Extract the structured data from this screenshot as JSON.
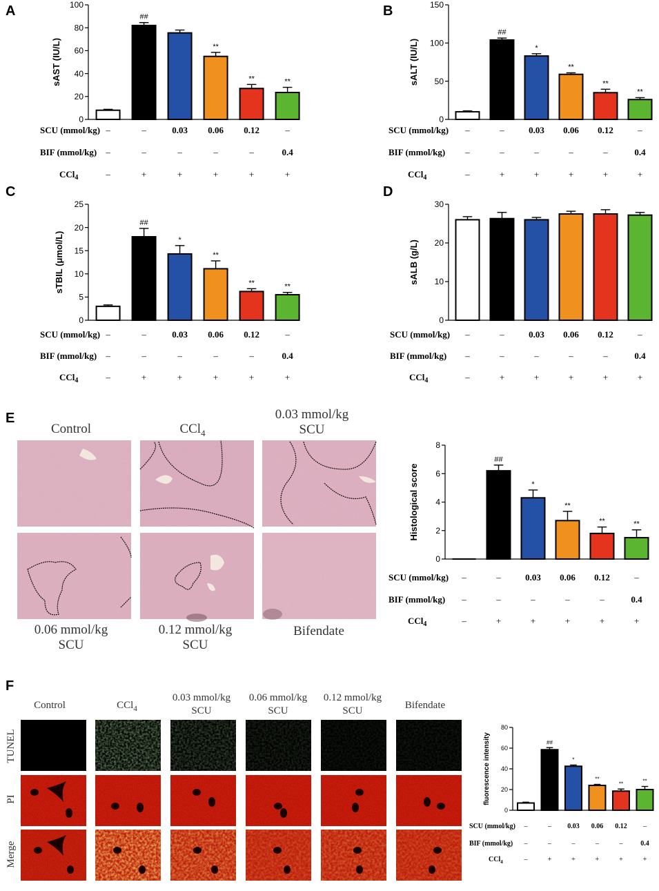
{
  "colors": [
    "#ffffff",
    "#000000",
    "#2451a6",
    "#f0901e",
    "#e4341d",
    "#5cb531"
  ],
  "treatment_table": {
    "scu_label": "SCU (mmol/kg)",
    "bif_label": "BIF (mmol/kg)",
    "ccl4_label": "CCl",
    "ccl4_sub": "4",
    "scu": [
      "–",
      "–",
      "0.03",
      "0.06",
      "0.12",
      "–"
    ],
    "bif": [
      "–",
      "–",
      "–",
      "–",
      "–",
      "0.4"
    ],
    "ccl4": [
      "–",
      "+",
      "+",
      "+",
      "+",
      "+"
    ]
  },
  "chart_data": [
    {
      "panel": "A",
      "type": "bar",
      "ylabel": "sAST (IU/L)",
      "ylim": [
        0,
        100
      ],
      "ticks": [
        0,
        20,
        40,
        60,
        80,
        100
      ],
      "values": [
        8,
        82,
        75.5,
        55,
        27,
        23.5
      ],
      "errors": [
        0.8,
        2.5,
        2.5,
        3.5,
        3.5,
        4.5
      ],
      "sig": [
        "",
        "##",
        "",
        "**",
        "**",
        "**"
      ]
    },
    {
      "panel": "B",
      "type": "bar",
      "ylabel": "sALT (IU/L)",
      "ylim": [
        0,
        150
      ],
      "ticks": [
        0,
        50,
        100,
        150
      ],
      "values": [
        10,
        104,
        83,
        59,
        35,
        26
      ],
      "errors": [
        1.2,
        2.5,
        3,
        2,
        4.5,
        2.5
      ],
      "sig": [
        "",
        "##",
        "*",
        "**",
        "**",
        "**"
      ]
    },
    {
      "panel": "C",
      "type": "bar",
      "ylabel": "sTBIL (μmol/L)",
      "ylim": [
        0,
        25
      ],
      "ticks": [
        0,
        5,
        10,
        15,
        20,
        25
      ],
      "values": [
        3,
        18,
        14.3,
        11.1,
        6.2,
        5.5
      ],
      "errors": [
        0.3,
        1.8,
        1.8,
        1.7,
        0.6,
        0.5
      ],
      "sig": [
        "",
        "##",
        "*",
        "**",
        "**",
        "**"
      ]
    },
    {
      "panel": "D",
      "type": "bar",
      "ylabel": "sALB (g/L)",
      "ylim": [
        0,
        30
      ],
      "ticks": [
        0,
        10,
        20,
        30
      ],
      "values": [
        26,
        26.3,
        26,
        27.5,
        27.5,
        27.2
      ],
      "errors": [
        0.8,
        1.6,
        0.6,
        0.7,
        1.1,
        0.7
      ],
      "sig": [
        "",
        "",
        "",
        "",
        "",
        ""
      ]
    },
    {
      "panel": "E",
      "type": "bar",
      "ylabel": "Histological score",
      "ylim": [
        0,
        8
      ],
      "ticks": [
        0,
        2,
        4,
        6,
        8
      ],
      "values": [
        0,
        6.2,
        4.3,
        2.7,
        1.8,
        1.5
      ],
      "errors": [
        0,
        0.4,
        0.55,
        0.65,
        0.45,
        0.55
      ],
      "sig": [
        "",
        "##",
        "*",
        "**",
        "**",
        "**"
      ]
    },
    {
      "panel": "F",
      "type": "bar",
      "ylabel": "fluorescence intensity",
      "ylim": [
        0,
        80
      ],
      "ticks": [
        0,
        20,
        40,
        60,
        80
      ],
      "values": [
        7,
        58.5,
        42.5,
        24,
        18.5,
        20
      ],
      "errors": [
        0.8,
        2,
        1.2,
        1,
        2,
        3
      ],
      "sig": [
        "",
        "##",
        "*",
        "**",
        "**",
        "**"
      ]
    }
  ],
  "panel_e": {
    "letter": "E",
    "labels_top": [
      "Control",
      "CCl",
      "0.03 mmol/kg",
      "SCU"
    ],
    "ccl4_sub": "4",
    "labels_bottom": [
      "0.06 mmol/kg",
      "SCU",
      "0.12 mmol/kg",
      "SCU",
      "Bifendate"
    ]
  },
  "panel_f": {
    "letter": "F",
    "col_labels": [
      "Control",
      "CCl",
      "0.03 mmol/kg",
      "SCU",
      "0.06 mmol/kg",
      "SCU",
      "0.12 mmol/kg",
      "SCU",
      "Bifendate"
    ],
    "ccl4_sub": "4",
    "row_labels": [
      "TUNEL",
      "PI",
      "Merge"
    ]
  }
}
